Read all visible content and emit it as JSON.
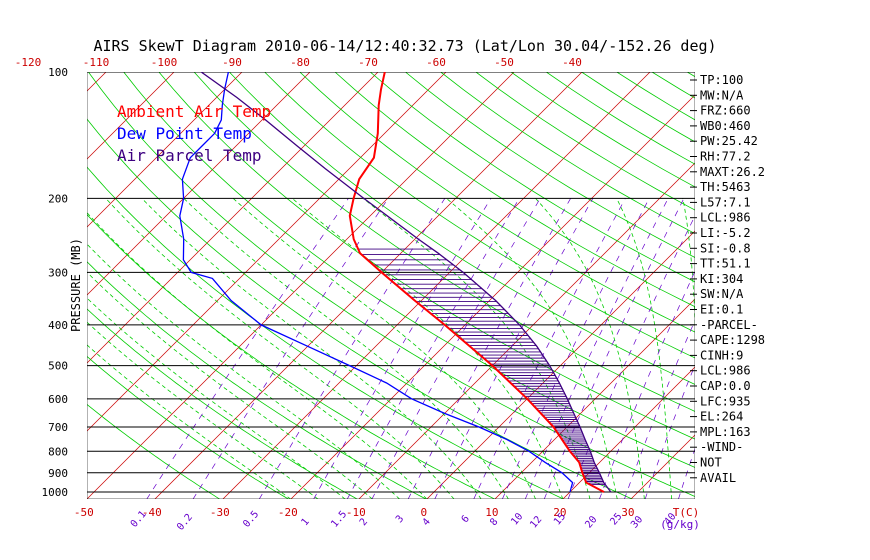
{
  "title": "AIRS SkewT Diagram 2010-06-14/12:40:32.73 (Lat/Lon 30.04/-152.26 deg)",
  "ylabel": "PRESSURE (MB)",
  "legend": [
    {
      "label": "Ambient Air Temp",
      "color": "#ff0000"
    },
    {
      "label": "Dew Point Temp",
      "color": "#0000ff"
    },
    {
      "label": "Air Parcel Temp",
      "color": "#3d0080"
    }
  ],
  "stats": [
    "TP:100",
    "MW:N/A",
    "FRZ:660",
    "WB0:460",
    "PW:25.42",
    "RH:77.2",
    "MAXT:26.2",
    "TH:5463",
    "L57:7.1",
    "LCL:986",
    "LI:-5.2",
    "SI:-0.8",
    "TT:51.1",
    "KI:304",
    "SW:N/A",
    "EI:0.1",
    "-PARCEL-",
    "CAPE:1298",
    "CINH:9",
    "LCL:986",
    "CAP:0.0",
    "LFC:935",
    "EL:264",
    "MPL:163",
    "-WIND-",
    "NOT",
    "AVAIL"
  ],
  "colors": {
    "temp": "#ff0000",
    "dewpoint": "#0000ff",
    "parcel": "#3d0080",
    "isotherm": "#cc0000",
    "dry_adiabat": "#00cc00",
    "moist_adiabat": "#00cc00",
    "mixing_ratio": "#6600cc",
    "isobar": "#000000",
    "text_red": "#cc0000",
    "text_black": "#000000",
    "hatch": "#3d0080"
  },
  "chart_data": {
    "type": "line",
    "y_scale": "log",
    "pressure_levels": [
      100,
      200,
      300,
      400,
      500,
      600,
      700,
      800,
      900,
      1000
    ],
    "pressure_tick_labels": [
      "100",
      "200",
      "300",
      "400",
      "500",
      "600",
      "700",
      "800",
      "900",
      "1000"
    ],
    "bottom_temp_ticks": [
      "-50",
      "-40",
      "-30",
      "-20",
      "-10",
      "0",
      "10",
      "20",
      "30"
    ],
    "bottom_temp_tick_values": [
      -50,
      -40,
      -30,
      -20,
      -10,
      0,
      10,
      20,
      30
    ],
    "top_temp_ticks": [
      "-120",
      "-110",
      "-100",
      "-90",
      "-80",
      "-70",
      "-60",
      "-50",
      "-40"
    ],
    "top_temp_tick_values": [
      -120,
      -110,
      -100,
      -90,
      -80,
      -70,
      -60,
      -50,
      -40
    ],
    "bottom_unit_label": "T(C)",
    "mixing_ratio_labels": [
      "0.1",
      "0.2",
      "0.5",
      "1",
      "1.5",
      "2",
      "3",
      "4",
      "6",
      "8",
      "10",
      "12",
      "15",
      "20",
      "25",
      "30",
      "40"
    ],
    "mixing_ratio_unit_label": "(g/kg)",
    "series": [
      {
        "name": "Ambient Air Temp",
        "points": [
          [
            1000,
            25
          ],
          [
            950,
            21
          ],
          [
            900,
            19
          ],
          [
            850,
            17
          ],
          [
            800,
            14
          ],
          [
            700,
            8
          ],
          [
            600,
            0
          ],
          [
            500,
            -10
          ],
          [
            400,
            -23
          ],
          [
            350,
            -31
          ],
          [
            300,
            -40
          ],
          [
            270,
            -46
          ],
          [
            250,
            -49
          ],
          [
            220,
            -53
          ],
          [
            200,
            -55
          ],
          [
            180,
            -57
          ],
          [
            160,
            -58
          ],
          [
            140,
            -61
          ],
          [
            120,
            -65
          ],
          [
            110,
            -67
          ],
          [
            100,
            -69
          ]
        ]
      },
      {
        "name": "Dew Point Temp",
        "points": [
          [
            1000,
            20
          ],
          [
            950,
            19
          ],
          [
            900,
            16
          ],
          [
            850,
            12
          ],
          [
            800,
            8
          ],
          [
            750,
            3
          ],
          [
            700,
            -3
          ],
          [
            650,
            -10
          ],
          [
            600,
            -17
          ],
          [
            550,
            -23
          ],
          [
            500,
            -31
          ],
          [
            450,
            -40
          ],
          [
            400,
            -50
          ],
          [
            350,
            -58
          ],
          [
            310,
            -64
          ],
          [
            300,
            -68
          ],
          [
            280,
            -71
          ],
          [
            250,
            -74
          ],
          [
            220,
            -78
          ],
          [
            200,
            -80
          ],
          [
            180,
            -83
          ],
          [
            160,
            -85
          ],
          [
            150,
            -85
          ],
          [
            140,
            -85
          ],
          [
            130,
            -86
          ],
          [
            120,
            -88
          ],
          [
            110,
            -90
          ],
          [
            100,
            -92
          ]
        ]
      },
      {
        "name": "Air Parcel Temp",
        "points": [
          [
            1000,
            26
          ],
          [
            950,
            23.6
          ],
          [
            900,
            21.5
          ],
          [
            850,
            19.2
          ],
          [
            800,
            17
          ],
          [
            750,
            14.5
          ],
          [
            700,
            11.9
          ],
          [
            650,
            9
          ],
          [
            600,
            5.9
          ],
          [
            550,
            2.4
          ],
          [
            500,
            -1.6
          ],
          [
            450,
            -6.3
          ],
          [
            400,
            -12
          ],
          [
            350,
            -19.1
          ],
          [
            300,
            -28
          ],
          [
            270,
            -34.5
          ],
          [
            250,
            -39.5
          ],
          [
            220,
            -47.5
          ],
          [
            200,
            -53.5
          ],
          [
            170,
            -63.5
          ],
          [
            150,
            -71
          ],
          [
            130,
            -79.5
          ],
          [
            115,
            -87
          ],
          [
            100,
            -96
          ]
        ]
      }
    ]
  }
}
